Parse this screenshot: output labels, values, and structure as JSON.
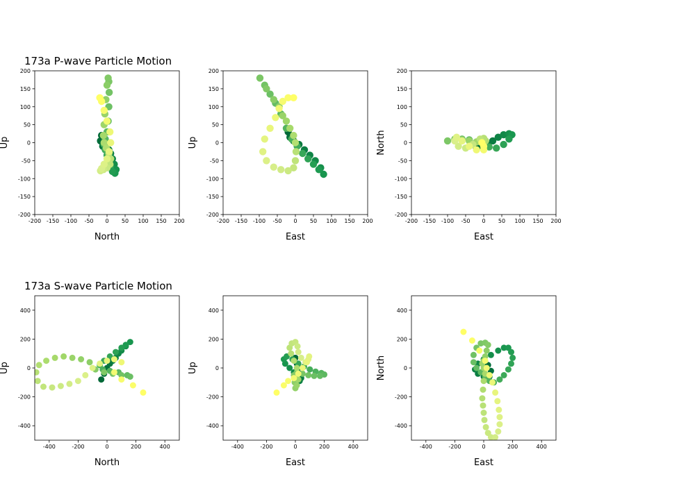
{
  "figure": {
    "title_p": "173a P-wave Particle Motion",
    "title_s": "173a S-wave Particle Motion"
  },
  "colors": {
    "viridis_yellow_green": [
      "#006837",
      "#1a9850",
      "#66bd63",
      "#a6d96a",
      "#d9ef8b",
      "#ffff66"
    ]
  },
  "chart_data": [
    {
      "type": "scatter",
      "title": "173a P-wave Particle Motion",
      "xlabel": "North",
      "ylabel": "Up",
      "xlim": [
        -200,
        200
      ],
      "ylim": [
        -200,
        200
      ],
      "xticks": [
        -200,
        -150,
        -100,
        -50,
        0,
        50,
        100,
        150,
        200
      ],
      "yticks": [
        -200,
        -150,
        -100,
        -50,
        0,
        50,
        100,
        150,
        200
      ],
      "points": [
        [
          -15,
          20
        ],
        [
          -18,
          5
        ],
        [
          -12,
          -10
        ],
        [
          -5,
          -15
        ],
        [
          5,
          -20
        ],
        [
          10,
          -30
        ],
        [
          15,
          -45
        ],
        [
          20,
          -60
        ],
        [
          25,
          -75
        ],
        [
          22,
          -85
        ],
        [
          15,
          -80
        ],
        [
          10,
          -65
        ],
        [
          5,
          -50
        ],
        [
          0,
          -35
        ],
        [
          -5,
          -20
        ],
        [
          -8,
          -5
        ],
        [
          -5,
          10
        ],
        [
          0,
          30
        ],
        [
          3,
          60
        ],
        [
          5,
          100
        ],
        [
          6,
          140
        ],
        [
          5,
          170
        ],
        [
          3,
          180
        ],
        [
          0,
          160
        ],
        [
          -3,
          120
        ],
        [
          -6,
          80
        ],
        [
          -8,
          50
        ],
        [
          -10,
          20
        ],
        [
          -8,
          0
        ],
        [
          -2,
          -15
        ],
        [
          5,
          -30
        ],
        [
          10,
          -45
        ],
        [
          8,
          -60
        ],
        [
          0,
          -70
        ],
        [
          -10,
          -75
        ],
        [
          -18,
          -78
        ],
        [
          -15,
          -72
        ],
        [
          -8,
          -60
        ],
        [
          0,
          -45
        ],
        [
          6,
          -25
        ],
        [
          10,
          0
        ],
        [
          8,
          30
        ],
        [
          0,
          60
        ],
        [
          -8,
          90
        ],
        [
          -15,
          115
        ],
        [
          -20,
          125
        ]
      ]
    },
    {
      "type": "scatter",
      "xlabel": "East",
      "ylabel": "Up",
      "xlim": [
        -200,
        200
      ],
      "ylim": [
        -200,
        200
      ],
      "xticks": [
        -200,
        -150,
        -100,
        -50,
        0,
        50,
        100,
        150,
        200
      ],
      "yticks": [
        -200,
        -150,
        -100,
        -50,
        0,
        50,
        100,
        150,
        200
      ],
      "points": [
        [
          -20,
          30
        ],
        [
          -15,
          15
        ],
        [
          -5,
          5
        ],
        [
          10,
          -5
        ],
        [
          25,
          -20
        ],
        [
          40,
          -35
        ],
        [
          55,
          -50
        ],
        [
          70,
          -70
        ],
        [
          78,
          -88
        ],
        [
          65,
          -75
        ],
        [
          50,
          -60
        ],
        [
          35,
          -45
        ],
        [
          20,
          -30
        ],
        [
          5,
          -10
        ],
        [
          -10,
          10
        ],
        [
          -25,
          40
        ],
        [
          -40,
          80
        ],
        [
          -55,
          110
        ],
        [
          -70,
          135
        ],
        [
          -85,
          160
        ],
        [
          -98,
          180
        ],
        [
          -80,
          150
        ],
        [
          -60,
          120
        ],
        [
          -45,
          100
        ],
        [
          -35,
          75
        ],
        [
          -25,
          60
        ],
        [
          -15,
          40
        ],
        [
          -5,
          20
        ],
        [
          0,
          0
        ],
        [
          2,
          -25
        ],
        [
          0,
          -50
        ],
        [
          -5,
          -70
        ],
        [
          -20,
          -78
        ],
        [
          -40,
          -75
        ],
        [
          -60,
          -68
        ],
        [
          -80,
          -50
        ],
        [
          -90,
          -25
        ],
        [
          -85,
          10
        ],
        [
          -70,
          40
        ],
        [
          -55,
          70
        ],
        [
          -45,
          95
        ],
        [
          -35,
          115
        ],
        [
          -20,
          125
        ],
        [
          -5,
          125
        ]
      ]
    },
    {
      "type": "scatter",
      "xlabel": "East",
      "ylabel": "North",
      "xlim": [
        -200,
        200
      ],
      "ylim": [
        -200,
        200
      ],
      "xticks": [
        -200,
        -150,
        -100,
        -50,
        0,
        50,
        100,
        150,
        200
      ],
      "yticks": [
        -200,
        -150,
        -100,
        -50,
        0,
        50,
        100,
        150,
        200
      ],
      "points": [
        [
          -20,
          -15
        ],
        [
          -5,
          -10
        ],
        [
          10,
          -5
        ],
        [
          25,
          5
        ],
        [
          40,
          15
        ],
        [
          55,
          22
        ],
        [
          70,
          25
        ],
        [
          78,
          22
        ],
        [
          70,
          10
        ],
        [
          55,
          -5
        ],
        [
          35,
          -15
        ],
        [
          15,
          -12
        ],
        [
          0,
          -5
        ],
        [
          -20,
          2
        ],
        [
          -40,
          8
        ],
        [
          -60,
          10
        ],
        [
          -80,
          8
        ],
        [
          -100,
          5
        ],
        [
          -80,
          10
        ],
        [
          -60,
          8
        ],
        [
          -40,
          5
        ],
        [
          -20,
          2
        ],
        [
          -5,
          0
        ],
        [
          5,
          5
        ],
        [
          0,
          12
        ],
        [
          -10,
          10
        ],
        [
          -30,
          -5
        ],
        [
          -50,
          -15
        ],
        [
          -70,
          -10
        ],
        [
          -80,
          5
        ],
        [
          -75,
          15
        ],
        [
          -60,
          5
        ],
        [
          -40,
          -10
        ],
        [
          -20,
          -20
        ],
        [
          0,
          -20
        ],
        [
          0,
          -10
        ],
        [
          -5,
          0
        ]
      ]
    },
    {
      "type": "scatter",
      "title": "173a S-wave Particle Motion",
      "xlabel": "North",
      "ylabel": "Up",
      "xlim": [
        -500,
        500
      ],
      "ylim": [
        -500,
        500
      ],
      "xticks": [
        -400,
        -200,
        0,
        200,
        400
      ],
      "yticks": [
        -400,
        -200,
        0,
        200,
        400
      ],
      "points": [
        [
          -40,
          -80
        ],
        [
          -20,
          -40
        ],
        [
          0,
          0
        ],
        [
          20,
          30
        ],
        [
          40,
          50
        ],
        [
          60,
          70
        ],
        [
          80,
          100
        ],
        [
          100,
          120
        ],
        [
          130,
          150
        ],
        [
          160,
          180
        ],
        [
          130,
          160
        ],
        [
          100,
          140
        ],
        [
          60,
          110
        ],
        [
          20,
          80
        ],
        [
          -20,
          50
        ],
        [
          -50,
          20
        ],
        [
          -30,
          -10
        ],
        [
          20,
          -20
        ],
        [
          80,
          -30
        ],
        [
          140,
          -50
        ],
        [
          160,
          -60
        ],
        [
          100,
          -50
        ],
        [
          40,
          -40
        ],
        [
          -20,
          -30
        ],
        [
          -80,
          -10
        ],
        [
          -120,
          40
        ],
        [
          -180,
          60
        ],
        [
          -240,
          70
        ],
        [
          -300,
          80
        ],
        [
          -360,
          70
        ],
        [
          -420,
          50
        ],
        [
          -470,
          20
        ],
        [
          -490,
          -30
        ],
        [
          -480,
          -90
        ],
        [
          -440,
          -130
        ],
        [
          -380,
          -135
        ],
        [
          -320,
          -125
        ],
        [
          -260,
          -110
        ],
        [
          -200,
          -90
        ],
        [
          -150,
          -50
        ],
        [
          -100,
          0
        ],
        [
          -50,
          30
        ],
        [
          0,
          50
        ],
        [
          50,
          60
        ],
        [
          100,
          40
        ],
        [
          50,
          -30
        ],
        [
          100,
          -80
        ],
        [
          180,
          -120
        ],
        [
          250,
          -170
        ]
      ]
    },
    {
      "type": "scatter",
      "xlabel": "East",
      "ylabel": "Up",
      "xlim": [
        -500,
        500
      ],
      "ylim": [
        -500,
        500
      ],
      "xticks": [
        -400,
        -200,
        0,
        200,
        400
      ],
      "yticks": [
        -400,
        -200,
        0,
        200,
        400
      ],
      "points": [
        [
          0,
          70
        ],
        [
          10,
          30
        ],
        [
          20,
          0
        ],
        [
          30,
          -40
        ],
        [
          40,
          -70
        ],
        [
          30,
          -90
        ],
        [
          10,
          -60
        ],
        [
          -10,
          -30
        ],
        [
          -40,
          0
        ],
        [
          -70,
          30
        ],
        [
          -80,
          60
        ],
        [
          -60,
          80
        ],
        [
          -20,
          60
        ],
        [
          20,
          30
        ],
        [
          60,
          10
        ],
        [
          100,
          -10
        ],
        [
          140,
          -25
        ],
        [
          180,
          -35
        ],
        [
          200,
          -45
        ],
        [
          170,
          -55
        ],
        [
          130,
          -55
        ],
        [
          90,
          -50
        ],
        [
          50,
          -40
        ],
        [
          10,
          -30
        ],
        [
          -10,
          -50
        ],
        [
          -5,
          -100
        ],
        [
          0,
          -140
        ],
        [
          10,
          -120
        ],
        [
          20,
          -80
        ],
        [
          20,
          -40
        ],
        [
          10,
          0
        ],
        [
          -10,
          50
        ],
        [
          -30,
          100
        ],
        [
          -40,
          140
        ],
        [
          -25,
          170
        ],
        [
          0,
          180
        ],
        [
          15,
          150
        ],
        [
          20,
          110
        ],
        [
          40,
          70
        ],
        [
          70,
          40
        ],
        [
          90,
          60
        ],
        [
          95,
          80
        ],
        [
          80,
          40
        ],
        [
          50,
          0
        ],
        [
          20,
          -40
        ],
        [
          -10,
          -70
        ],
        [
          -50,
          -90
        ],
        [
          -80,
          -120
        ],
        [
          -130,
          -170
        ]
      ]
    },
    {
      "type": "scatter",
      "xlabel": "East",
      "ylabel": "North",
      "xlim": [
        -500,
        500
      ],
      "ylim": [
        -500,
        500
      ],
      "xticks": [
        -400,
        -200,
        0,
        200,
        400
      ],
      "yticks": [
        -400,
        -200,
        0,
        200,
        400
      ],
      "points": [
        [
          0,
          40
        ],
        [
          30,
          20
        ],
        [
          50,
          -20
        ],
        [
          40,
          -60
        ],
        [
          0,
          -60
        ],
        [
          -40,
          -40
        ],
        [
          -60,
          -10
        ],
        [
          -40,
          30
        ],
        [
          0,
          60
        ],
        [
          50,
          90
        ],
        [
          100,
          120
        ],
        [
          140,
          140
        ],
        [
          170,
          140
        ],
        [
          190,
          110
        ],
        [
          200,
          70
        ],
        [
          190,
          30
        ],
        [
          170,
          -10
        ],
        [
          140,
          -50
        ],
        [
          110,
          -80
        ],
        [
          70,
          -100
        ],
        [
          40,
          -90
        ],
        [
          10,
          -60
        ],
        [
          -20,
          -30
        ],
        [
          -50,
          0
        ],
        [
          -70,
          40
        ],
        [
          -70,
          90
        ],
        [
          -50,
          140
        ],
        [
          -20,
          170
        ],
        [
          10,
          175
        ],
        [
          30,
          160
        ],
        [
          20,
          120
        ],
        [
          10,
          80
        ],
        [
          0,
          50
        ],
        [
          -10,
          30
        ],
        [
          0,
          0
        ],
        [
          10,
          -40
        ],
        [
          0,
          -90
        ],
        [
          -5,
          -150
        ],
        [
          -10,
          -210
        ],
        [
          -5,
          -260
        ],
        [
          0,
          -310
        ],
        [
          5,
          -360
        ],
        [
          15,
          -410
        ],
        [
          30,
          -450
        ],
        [
          50,
          -480
        ],
        [
          80,
          -480
        ],
        [
          100,
          -440
        ],
        [
          110,
          -390
        ],
        [
          110,
          -340
        ],
        [
          105,
          -290
        ],
        [
          95,
          -230
        ],
        [
          80,
          -170
        ],
        [
          60,
          -100
        ],
        [
          40,
          -50
        ],
        [
          20,
          0
        ],
        [
          10,
          50
        ],
        [
          -30,
          120
        ],
        [
          -80,
          190
        ],
        [
          -140,
          250
        ]
      ]
    }
  ]
}
